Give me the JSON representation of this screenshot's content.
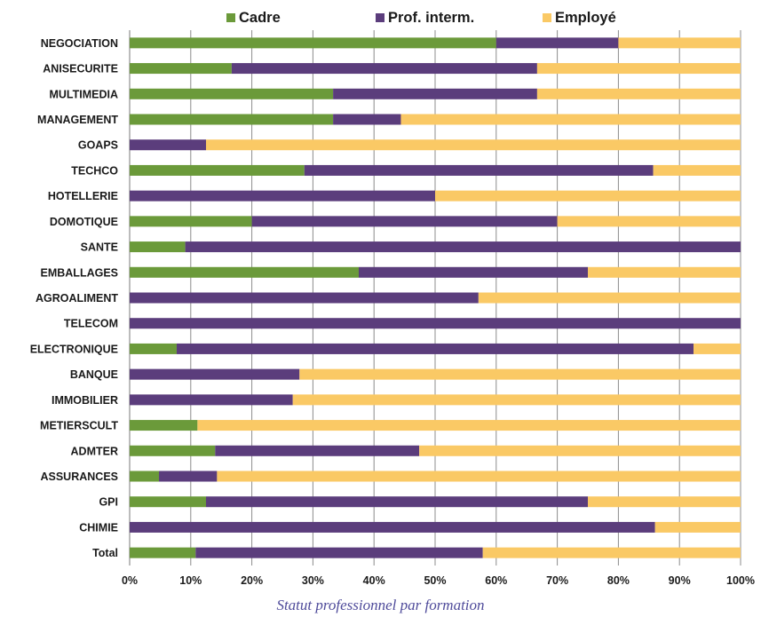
{
  "chart_data": {
    "type": "bar",
    "orientation": "horizontal",
    "stacked": "percent",
    "title": "",
    "caption": "Statut professionnel par formation",
    "xlabel": "",
    "ylabel": "",
    "xlim": [
      0,
      100
    ],
    "x_ticks": [
      "0%",
      "10%",
      "20%",
      "30%",
      "40%",
      "50%",
      "60%",
      "70%",
      "80%",
      "90%",
      "100%"
    ],
    "grid": "vertical",
    "legend_position": "top",
    "categories": [
      "NEGOCIATION",
      "ANISECURITE",
      "MULTIMEDIA",
      "MANAGEMENT",
      "GOAPS",
      "TECHCO",
      "HOTELLERIE",
      "DOMOTIQUE",
      "SANTE",
      "EMBALLAGES",
      "AGROALIMENT",
      "TELECOM",
      "ELECTRONIQUE",
      "BANQUE",
      "IMMOBILIER",
      "METIERSCULT",
      "ADMTER",
      "ASSURANCES",
      "GPI",
      "CHIMIE",
      "Total"
    ],
    "series": [
      {
        "name": "Cadre",
        "color": "#6b9a3a",
        "values": [
          60,
          16.7,
          33.3,
          33.3,
          0,
          28.6,
          0,
          20,
          9.1,
          37.5,
          0,
          0,
          7.7,
          0,
          0,
          11.1,
          14,
          4.8,
          12.5,
          0,
          10.8
        ]
      },
      {
        "name": "Prof. interm.",
        "color": "#5b3d7c",
        "values": [
          20,
          50,
          33.4,
          11.1,
          12.5,
          57.1,
          50,
          50,
          90.9,
          37.5,
          57.1,
          100,
          84.6,
          27.8,
          26.7,
          0,
          33.4,
          9.5,
          62.5,
          86,
          47
        ]
      },
      {
        "name": "Employé",
        "color": "#fac965",
        "values": [
          20,
          33.3,
          33.3,
          55.6,
          87.5,
          14.3,
          50,
          30,
          0,
          25,
          42.9,
          0,
          7.7,
          72.2,
          73.3,
          88.9,
          52.6,
          85.7,
          25,
          14,
          42.2
        ]
      }
    ]
  }
}
